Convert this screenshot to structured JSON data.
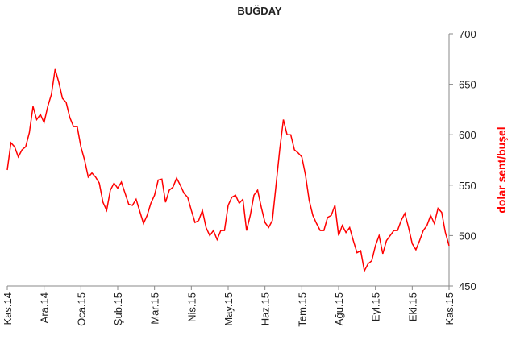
{
  "chart_data": {
    "type": "line",
    "title": "BUĞDAY",
    "y_label": "dolar sent/buşel",
    "categories": [
      "Kas.14",
      null,
      null,
      null,
      null,
      null,
      null,
      null,
      null,
      null,
      "Ara.14",
      null,
      null,
      null,
      null,
      null,
      null,
      null,
      null,
      null,
      "Oca.15",
      null,
      null,
      null,
      null,
      null,
      null,
      null,
      null,
      null,
      "Şub.15",
      null,
      null,
      null,
      null,
      null,
      null,
      null,
      null,
      null,
      "Mar.15",
      null,
      null,
      null,
      null,
      null,
      null,
      null,
      null,
      null,
      "Nis.15",
      null,
      null,
      null,
      null,
      null,
      null,
      null,
      null,
      null,
      "May.15",
      null,
      null,
      null,
      null,
      null,
      null,
      null,
      null,
      null,
      "Haz.15",
      null,
      null,
      null,
      null,
      null,
      null,
      null,
      null,
      null,
      "Tem.15",
      null,
      null,
      null,
      null,
      null,
      null,
      null,
      null,
      null,
      "Ağu.15",
      null,
      null,
      null,
      null,
      null,
      null,
      null,
      null,
      null,
      "Eyl.15",
      null,
      null,
      null,
      null,
      null,
      null,
      null,
      null,
      null,
      "Eki.15",
      null,
      null,
      null,
      null,
      null,
      null,
      null,
      null,
      null,
      "Kas.15"
    ],
    "series": [
      {
        "name": "BUĞDAY",
        "color": "#ff0000",
        "values": [
          565,
          592,
          588,
          578,
          585,
          588,
          602,
          628,
          615,
          620,
          612,
          628,
          640,
          665,
          652,
          636,
          632,
          617,
          608,
          608,
          588,
          575,
          558,
          562,
          558,
          552,
          533,
          525,
          545,
          552,
          547,
          553,
          542,
          531,
          530,
          536,
          524,
          512,
          520,
          532,
          540,
          555,
          556,
          533,
          545,
          548,
          557,
          550,
          542,
          538,
          525,
          513,
          515,
          525,
          508,
          500,
          505,
          496,
          505,
          505,
          530,
          538,
          540,
          532,
          536,
          505,
          520,
          540,
          545,
          528,
          513,
          508,
          515,
          550,
          585,
          615,
          600,
          600,
          585,
          582,
          578,
          560,
          535,
          520,
          512,
          505,
          505,
          518,
          520,
          530,
          500,
          510,
          503,
          508,
          495,
          483,
          485,
          465,
          472,
          475,
          490,
          500,
          482,
          495,
          500,
          505,
          505,
          515,
          522,
          508,
          492,
          486,
          495,
          505,
          510,
          520,
          512,
          527,
          523,
          503,
          490
        ]
      }
    ],
    "ylim": [
      450,
      700
    ],
    "yticks": [
      450,
      500,
      550,
      600,
      650,
      700
    ],
    "y_axis_side": "right"
  }
}
